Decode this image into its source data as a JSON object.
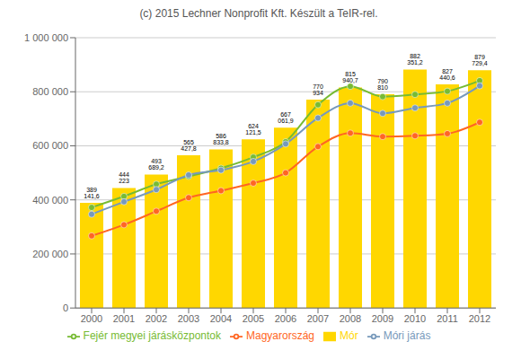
{
  "chart_data": {
    "type": "bar",
    "title": "(c) 2015 Lechner Nonprofit Kft. Készült a TeIR-rel.",
    "categories": [
      2000,
      2001,
      2002,
      2003,
      2004,
      2005,
      2006,
      2007,
      2008,
      2009,
      2010,
      2011,
      2012
    ],
    "series": [
      {
        "name": "Mór",
        "type": "bar",
        "color": "#FFD700",
        "data_labels": true,
        "values": [
          389141.6,
          444223,
          493689.2,
          565427.8,
          586833.8,
          624121.5,
          667061.9,
          770934,
          815940.7,
          790810,
          882351.2,
          827440.6,
          879729.4
        ],
        "value_labels": [
          "389 141,6",
          "444 223",
          "493 689,2",
          "565 427,8",
          "586 833,8",
          "624 121,5",
          "667 061,9",
          "770 934",
          "815 940,7",
          "790 810",
          "882 351,2",
          "827 440,6",
          "879 729,4"
        ]
      },
      {
        "name": "Magyarország",
        "type": "line",
        "color": "#FF6622",
        "marker": "circle",
        "values": [
          267000,
          308000,
          358000,
          408000,
          434000,
          462000,
          500000,
          597000,
          647000,
          634000,
          637000,
          645000,
          687000
        ]
      },
      {
        "name": "Fejér megyei járásközpontok",
        "type": "line",
        "color": "#77BB33",
        "marker": "circle",
        "values": [
          372000,
          413000,
          458000,
          487000,
          517000,
          558000,
          615000,
          752000,
          820000,
          782000,
          790000,
          802000,
          841000
        ]
      },
      {
        "name": "Móri járás",
        "type": "line",
        "color": "#7799BB",
        "marker": "circle",
        "values": [
          347000,
          393000,
          438000,
          492000,
          510000,
          542000,
          607000,
          703000,
          758000,
          720000,
          740000,
          758000,
          822000
        ]
      }
    ],
    "ylim": [
      0,
      1000000
    ],
    "yticks": [
      0,
      {
        "value": 200000,
        "label": "200 000"
      },
      {
        "value": 400000,
        "label": "400 000"
      },
      {
        "value": 600000,
        "label": "600 000"
      },
      {
        "value": 800000,
        "label": "800 000"
      },
      {
        "value": 1000000,
        "label": "1 000 000"
      }
    ],
    "grid": true,
    "legend": "bottom"
  }
}
